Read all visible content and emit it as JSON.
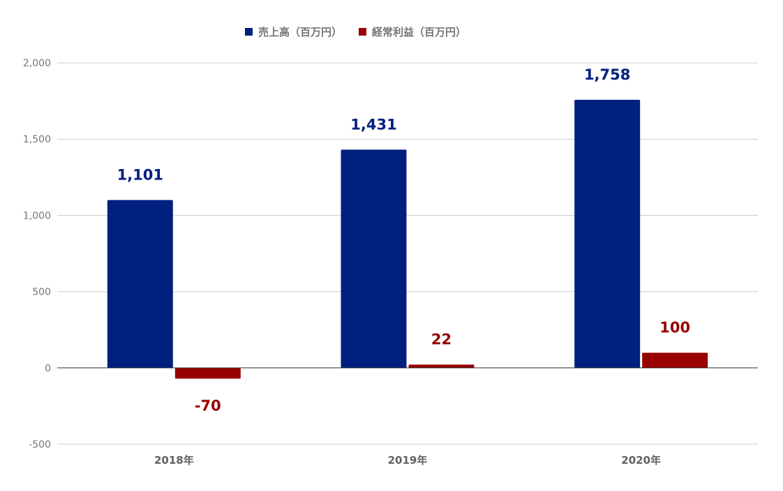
{
  "chart_data": {
    "type": "bar",
    "title": "",
    "xlabel": "",
    "ylabel": "",
    "categories": [
      "2018年",
      "2019年",
      "2020年"
    ],
    "series": [
      {
        "name": "売上高（百万円）",
        "values": [
          1101,
          1431,
          1758
        ],
        "labels": [
          "1,101",
          "1,431",
          "1,758"
        ],
        "color": "#002080"
      },
      {
        "name": "経常利益（百万円）",
        "values": [
          -70,
          22,
          100
        ],
        "labels": [
          "-70",
          "22",
          "100"
        ],
        "color": "#990000"
      }
    ],
    "ylim": [
      -500,
      2000
    ],
    "yticks": [
      2000,
      1500,
      1000,
      500,
      0,
      -500
    ],
    "ytick_labels": [
      "2,000",
      "1,500",
      "1,000",
      "500",
      "0",
      "-500"
    ],
    "grid": true,
    "legend_position": "top-center",
    "gridline_color": "#cccccc",
    "zero_line_color": "#333333"
  }
}
